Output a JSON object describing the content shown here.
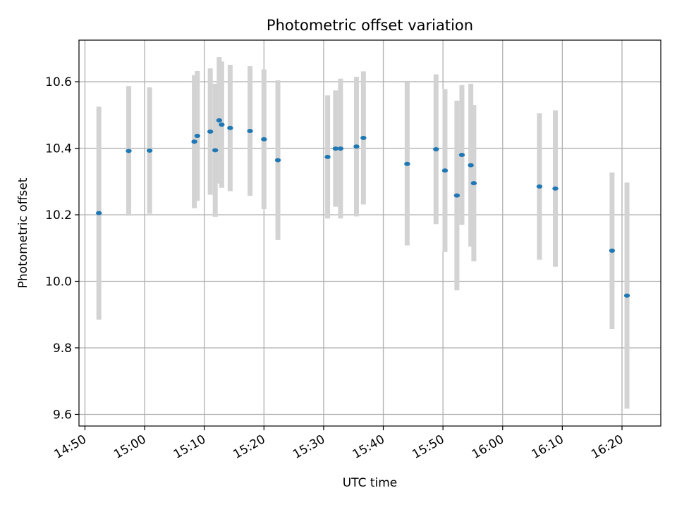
{
  "chart_data": {
    "type": "scatter",
    "title": "Photometric offset variation",
    "xlabel": "UTC time",
    "ylabel": "Photometric offset",
    "x_ticks": [
      "14:50",
      "15:00",
      "15:10",
      "15:20",
      "15:30",
      "15:40",
      "15:50",
      "16:00",
      "16:10",
      "16:20"
    ],
    "y_ticks": [
      "9.6",
      "9.8",
      "10.0",
      "10.2",
      "10.4",
      "10.6"
    ],
    "xlim": [
      "14:49:00",
      "16:26:30"
    ],
    "ylim": [
      9.565,
      10.725
    ],
    "grid": true,
    "colors": {
      "marker": "#1f77b4",
      "errorbar": "#d3d3d3",
      "grid": "#b0b0b0"
    },
    "points": [
      {
        "x": "14:52:20",
        "y": 10.205,
        "yerr": 0.32
      },
      {
        "x": "14:57:20",
        "y": 10.392,
        "yerr": 0.195
      },
      {
        "x": "15:00:50",
        "y": 10.393,
        "yerr": 0.19
      },
      {
        "x": "15:08:20",
        "y": 10.42,
        "yerr": 0.2
      },
      {
        "x": "15:08:50",
        "y": 10.437,
        "yerr": 0.195
      },
      {
        "x": "15:11:00",
        "y": 10.45,
        "yerr": 0.19
      },
      {
        "x": "15:11:50",
        "y": 10.394,
        "yerr": 0.2
      },
      {
        "x": "15:12:30",
        "y": 10.484,
        "yerr": 0.19
      },
      {
        "x": "15:12:55",
        "y": 10.471,
        "yerr": 0.19
      },
      {
        "x": "15:14:20",
        "y": 10.461,
        "yerr": 0.19
      },
      {
        "x": "15:17:40",
        "y": 10.452,
        "yerr": 0.195
      },
      {
        "x": "15:20:00",
        "y": 10.427,
        "yerr": 0.21
      },
      {
        "x": "15:22:20",
        "y": 10.364,
        "yerr": 0.24
      },
      {
        "x": "15:30:40",
        "y": 10.374,
        "yerr": 0.185
      },
      {
        "x": "15:32:00",
        "y": 10.399,
        "yerr": 0.175
      },
      {
        "x": "15:32:50",
        "y": 10.399,
        "yerr": 0.21
      },
      {
        "x": "15:35:30",
        "y": 10.405,
        "yerr": 0.21
      },
      {
        "x": "15:36:40",
        "y": 10.431,
        "yerr": 0.2
      },
      {
        "x": "15:44:00",
        "y": 10.353,
        "yerr": 0.245
      },
      {
        "x": "15:48:50",
        "y": 10.397,
        "yerr": 0.225
      },
      {
        "x": "15:50:20",
        "y": 10.333,
        "yerr": 0.245
      },
      {
        "x": "15:52:20",
        "y": 10.258,
        "yerr": 0.285
      },
      {
        "x": "15:53:10",
        "y": 10.38,
        "yerr": 0.21
      },
      {
        "x": "15:54:40",
        "y": 10.349,
        "yerr": 0.245
      },
      {
        "x": "15:55:10",
        "y": 10.295,
        "yerr": 0.235
      },
      {
        "x": "16:06:10",
        "y": 10.285,
        "yerr": 0.22
      },
      {
        "x": "16:08:50",
        "y": 10.279,
        "yerr": 0.235
      },
      {
        "x": "16:18:20",
        "y": 10.092,
        "yerr": 0.235
      },
      {
        "x": "16:20:50",
        "y": 9.957,
        "yerr": 0.34
      }
    ]
  }
}
